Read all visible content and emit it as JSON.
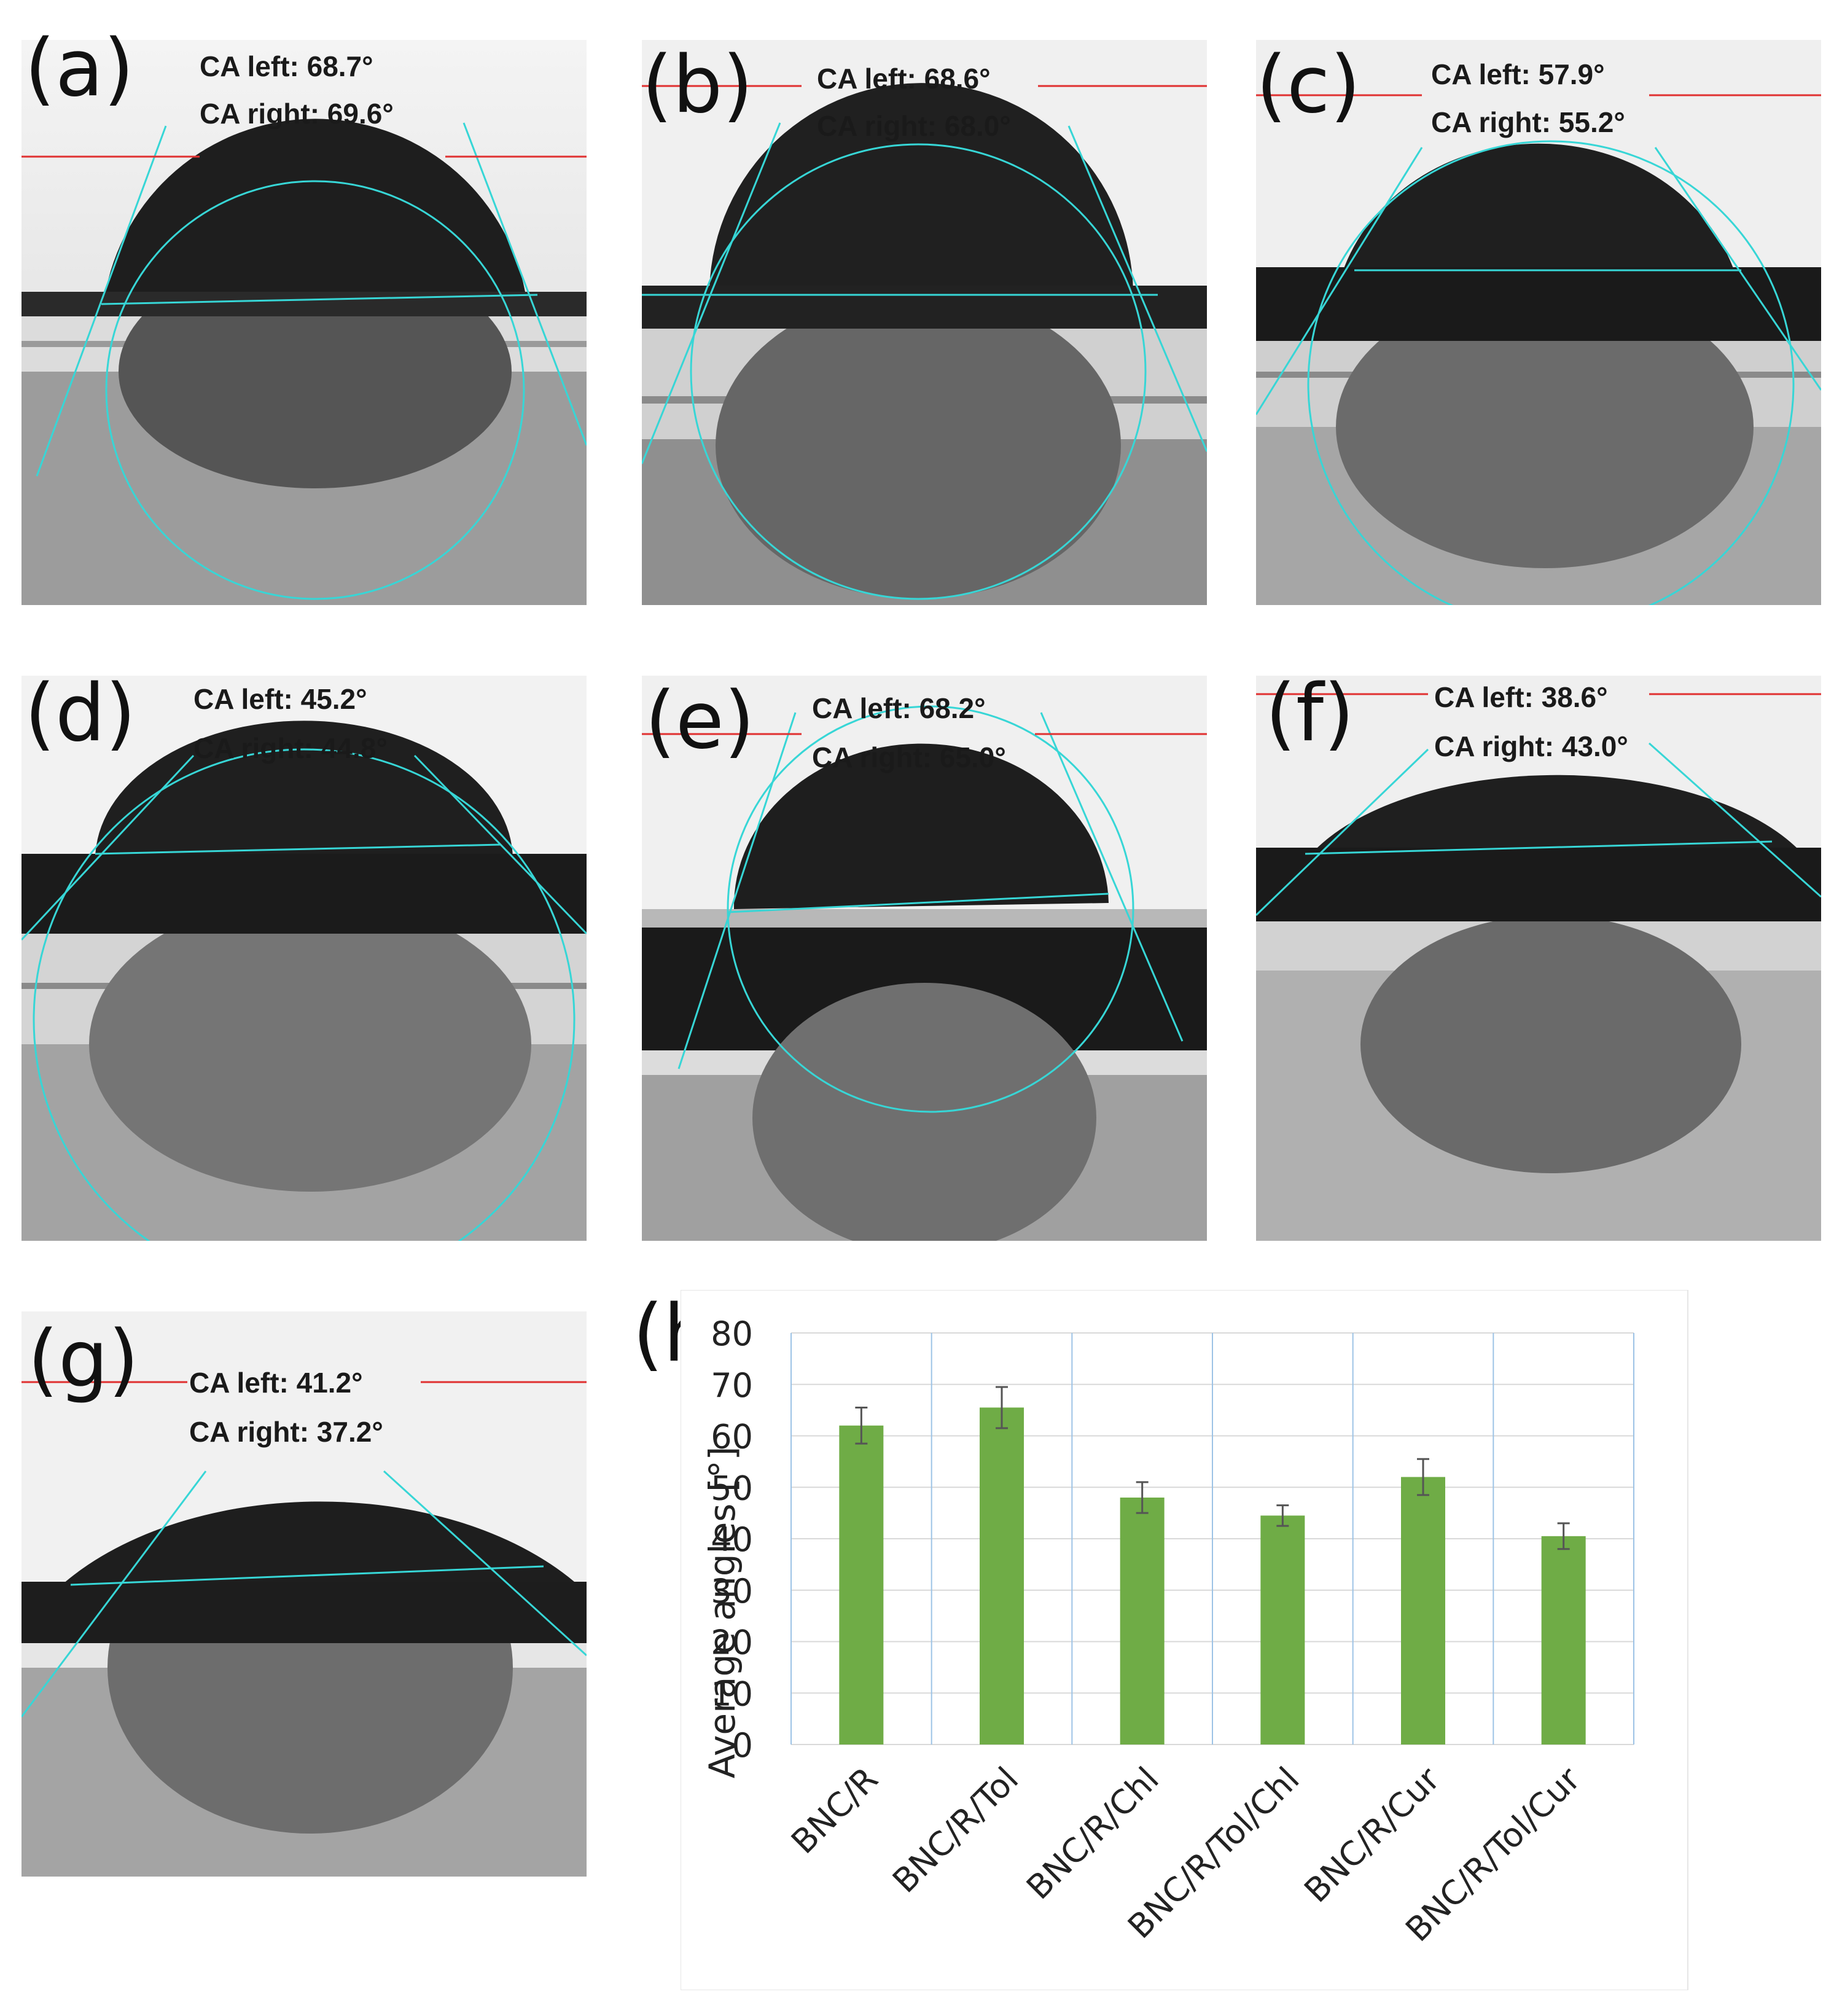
{
  "panels": [
    {
      "label": "(a)",
      "ca_left": "CA left: 68.7°",
      "ca_right": "CA right: 69.6°"
    },
    {
      "label": "(b)",
      "ca_left": "CA left: 68.6°",
      "ca_right": "CA right: 68.0°"
    },
    {
      "label": "(c)",
      "ca_left": "CA left: 57.9°",
      "ca_right": "CA right: 55.2°"
    },
    {
      "label": "(d)",
      "ca_left": "CA left: 45.2°",
      "ca_right": "CA right: 44.8°"
    },
    {
      "label": "(e)",
      "ca_left": "CA left: 68.2°",
      "ca_right": "CA right: 65.0°"
    },
    {
      "label": "(f)",
      "ca_left": "CA left: 38.6°",
      "ca_right": "CA right: 43.0°"
    },
    {
      "label": "(g)",
      "ca_left": "CA left: 41.2°",
      "ca_right": "CA right: 37.2°"
    }
  ],
  "chart_label": "(h)",
  "colors": {
    "bar": "#6fac46",
    "grid": "#9dc3e6",
    "fit_line": "#37d6d6",
    "baseline": "#e03030"
  },
  "chart_data": {
    "type": "bar",
    "categories": [
      "BNC/R",
      "BNC/R/Tol",
      "BNC/R/Chl",
      "BNC/R/Tol/Chl",
      "BNC/R/Cur",
      "BNC/R/Tol/Cur"
    ],
    "values": [
      62,
      65.5,
      48,
      44.5,
      52,
      40.5
    ],
    "errors": [
      3.5,
      4,
      3,
      2,
      3.5,
      2.5
    ],
    "title": "",
    "xlabel": "",
    "ylabel": "Average angles [°]",
    "ylim": [
      0,
      80
    ],
    "yticks": [
      "0",
      "10",
      "20",
      "30",
      "40",
      "50",
      "60",
      "70",
      "80"
    ],
    "grid": true,
    "legend": "none"
  }
}
